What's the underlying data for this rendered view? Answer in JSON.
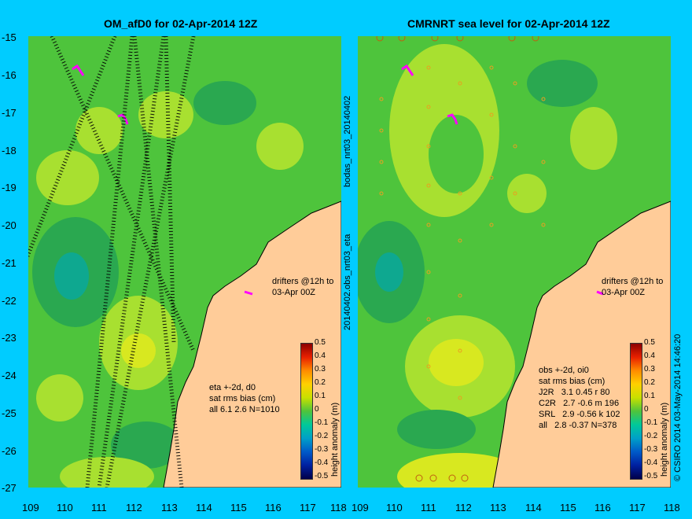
{
  "left_title": "OM_afD0 for 02-Apr-2014 12Z",
  "right_title": "CMRNRT sea level  for 02-Apr-2014 12Z",
  "x_ticks": [
    "109",
    "110",
    "111",
    "112",
    "113",
    "114",
    "115",
    "116",
    "117",
    "118"
  ],
  "y_ticks": [
    "-15",
    "-16",
    "-17",
    "-18",
    "-19",
    "-20",
    "-21",
    "-22",
    "-23",
    "-24",
    "-25",
    "-26",
    "-27"
  ],
  "colorbar_ticks": [
    "0.5",
    "0.4",
    "0.3",
    "0.2",
    "0.1",
    "0",
    "-0.1",
    "-0.2",
    "-0.3",
    "-0.4",
    "-0.5"
  ],
  "colorbar_label": "height anomaly (m)",
  "drifters_note": "drifters @12h to\n03-Apr 00Z",
  "left_stats": "eta +-2d, d0\nsat rms bias (cm)\nall 6.1 2.6 N=1010",
  "right_stats": "obs +-2d, oi0\nsat rms bias (cm)\nJ2R   3.1 0.45 r 80\nC2R   2.7 -0.6 m 196\nSRL   2.9 -0.56 k 102\nall   2.8 -0.37 N=378",
  "vertical_label_1": "bodas_nrt03_20140402",
  "vertical_label_2": "20140402.obs_nrt03_eta",
  "credit": "© CSIRO 2014  03-May-2014 14:46:20",
  "colors": {
    "background": "#00ccff",
    "land": "#ffcc99",
    "ocean_base": "#4ec43c",
    "drifter": "#ff00ff"
  }
}
